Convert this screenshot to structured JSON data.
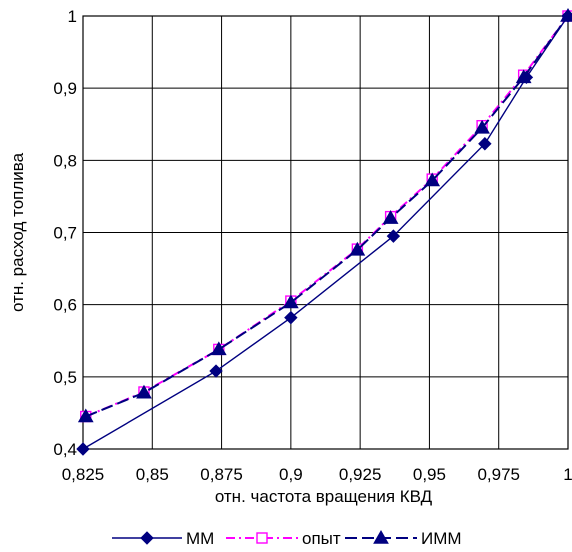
{
  "chart_data": {
    "type": "line",
    "xlabel": "отн. частота вращения КВД",
    "ylabel": "отн. расход топлива",
    "xlim": [
      0.825,
      1
    ],
    "ylim": [
      0.4,
      1
    ],
    "x_ticks": [
      "0,825",
      "0,85",
      "0,875",
      "0,9",
      "0,925",
      "0,95",
      "0,975",
      "1"
    ],
    "y_ticks": [
      "0,4",
      "0,5",
      "0,6",
      "0,7",
      "0,8",
      "0,9",
      "1"
    ],
    "grid": true,
    "legend_position": "bottom",
    "series": [
      {
        "name": "ММ",
        "color": "#000080",
        "line": "solid",
        "marker": "diamond-filled",
        "x": [
          0.825,
          0.873,
          0.9,
          0.937,
          0.97,
          0.985,
          1.0
        ],
        "y": [
          0.4,
          0.508,
          0.582,
          0.695,
          0.823,
          0.915,
          1.0
        ]
      },
      {
        "name": "опыт",
        "color": "#ff00ff",
        "line": "dash-dot",
        "marker": "square-open",
        "x": [
          0.826,
          0.847,
          0.874,
          0.9,
          0.924,
          0.936,
          0.951,
          0.969,
          0.984,
          1.0
        ],
        "y": [
          0.445,
          0.479,
          0.538,
          0.605,
          0.677,
          0.722,
          0.774,
          0.848,
          0.918,
          1.0
        ]
      },
      {
        "name": "ИММ",
        "color": "#000080",
        "line": "dashed",
        "marker": "triangle-filled",
        "x": [
          0.826,
          0.847,
          0.874,
          0.9,
          0.924,
          0.936,
          0.951,
          0.969,
          0.984,
          1.0
        ],
        "y": [
          0.445,
          0.478,
          0.538,
          0.603,
          0.676,
          0.72,
          0.772,
          0.845,
          0.915,
          1.0
        ]
      }
    ]
  }
}
